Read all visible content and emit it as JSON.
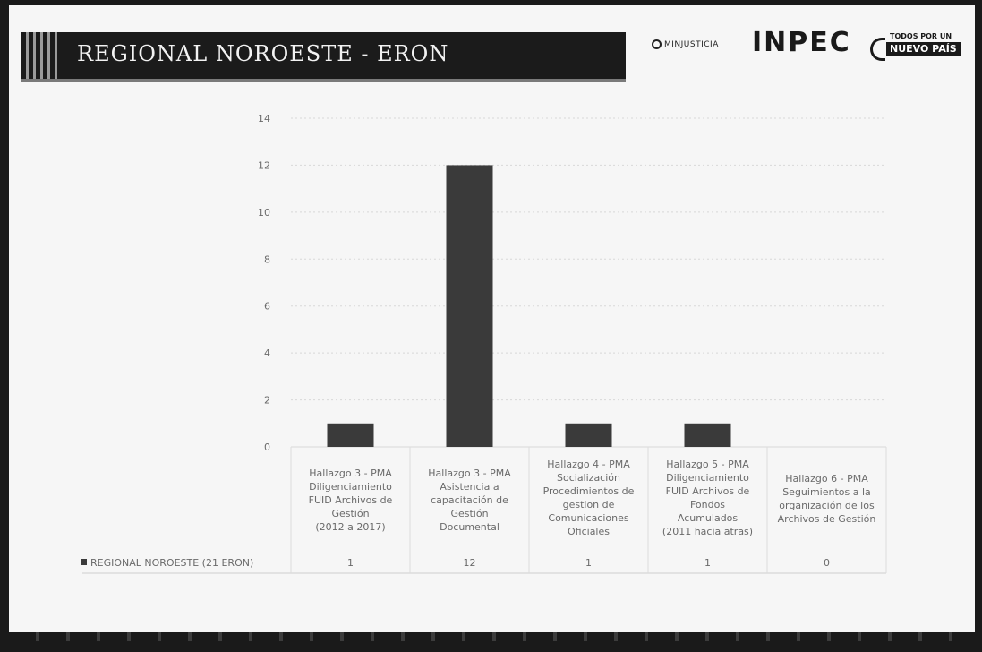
{
  "slide": {
    "title": "REGIONAL NOROESTE - ERON",
    "logos": {
      "minjusticia": "MINJUSTICIA",
      "inpec": "INPEC",
      "todos_top": "TODOS POR UN",
      "todos_main": "NUEVO PAÍS"
    }
  },
  "chart_data": {
    "type": "bar",
    "categories": [
      "Hallazgo 3 - PMA Diligenciamiento FUID Archivos de Gestión (2012 a 2017)",
      "Hallazgo 3 - PMA Asistencia a capacitación de Gestión Documental",
      "Hallazgo 4 - PMA Socialización Procedimientos de gestion de Comunicaciones Oficiales",
      "Hallazgo 5 - PMA Diligenciamiento FUID Archivos de Fondos Acumulados (2011 hacia atras)",
      "Hallazgo 6 - PMA Seguimientos a la organización de los Archivos de Gestión"
    ],
    "category_lines": [
      [
        "Hallazgo 3 - PMA",
        "Diligenciamiento",
        "FUID Archivos de",
        "Gestión",
        "(2012 a 2017)"
      ],
      [
        "Hallazgo 3 - PMA",
        "Asistencia a",
        "capacitación de",
        "Gestión",
        "Documental"
      ],
      [
        "Hallazgo 4 - PMA",
        "Socialización",
        "Procedimientos de",
        "gestion de",
        "Comunicaciones",
        "Oficiales"
      ],
      [
        "Hallazgo 5 - PMA",
        "Diligenciamiento",
        "FUID Archivos de",
        "Fondos",
        "Acumulados",
        "(2011 hacia atras)"
      ],
      [
        "Hallazgo 6 - PMA",
        "Seguimientos a la",
        "organización de los",
        "Archivos de Gestión"
      ]
    ],
    "series": [
      {
        "name": "REGIONAL NOROESTE (21 ERON)",
        "values": [
          1,
          12,
          1,
          1,
          0
        ]
      }
    ],
    "ylim": [
      0,
      14
    ],
    "yticks": [
      0,
      2,
      4,
      6,
      8,
      10,
      12,
      14
    ],
    "grid": true,
    "legend": "data-table-left",
    "colors": {
      "bar": "#3a3a3a",
      "grid": "#d8d8d8",
      "text": "#6a6a6a"
    }
  }
}
